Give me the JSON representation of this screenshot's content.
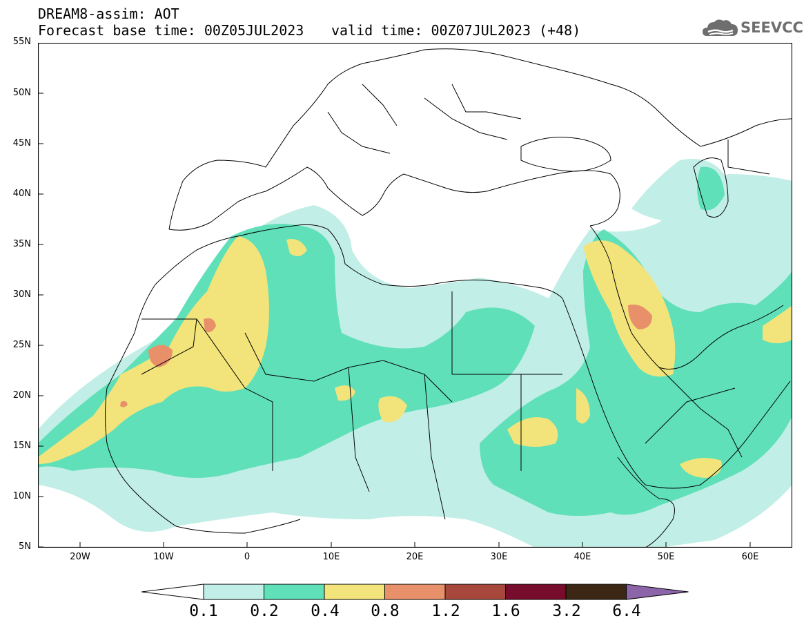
{
  "header": {
    "line1": "DREAM8-assim: AOT",
    "line2": "Forecast base time: 00Z05JUL2023",
    "line2b": "valid time: 00Z07JUL2023 (+48)"
  },
  "logo": {
    "text": "SEEVCCC",
    "icon": "cloud-icon"
  },
  "axes": {
    "lat_labels": [
      "55N",
      "50N",
      "45N",
      "40N",
      "35N",
      "30N",
      "25N",
      "20N",
      "15N",
      "10N",
      "5N"
    ],
    "lon_labels": [
      "20W",
      "10W",
      "0",
      "10E",
      "20E",
      "30E",
      "40E",
      "50E",
      "60E"
    ]
  },
  "legend": {
    "labels": [
      "0.1",
      "0.2",
      "0.4",
      "0.8",
      "1.2",
      "1.6",
      "3.2",
      "6.4"
    ],
    "colors": [
      "#ffffff",
      "#c1eee6",
      "#5fe0b8",
      "#f2e47a",
      "#e8906a",
      "#a8483c",
      "#780c2c",
      "#3c2614",
      "#8c64a8"
    ]
  },
  "colors": {
    "level1": "#c1eee6",
    "level2": "#5fe0b8",
    "level3": "#f2e47a",
    "level4": "#e8906a"
  }
}
